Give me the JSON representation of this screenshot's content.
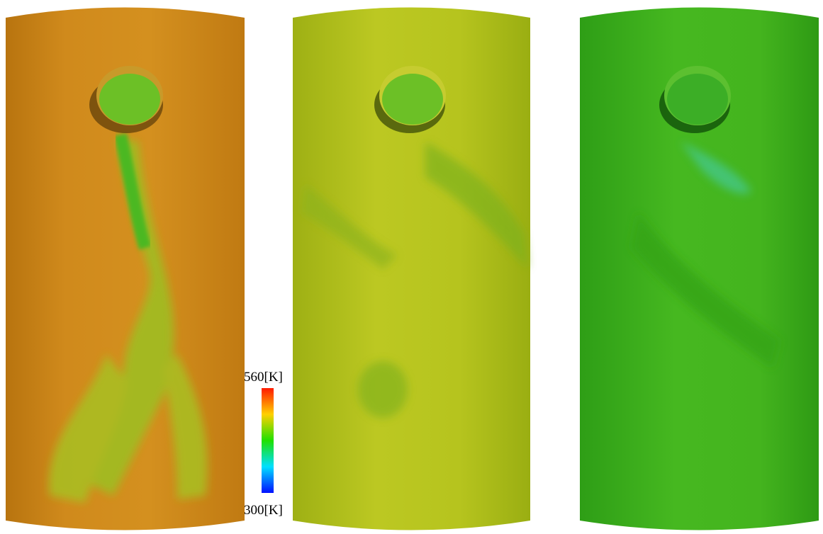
{
  "colorbar": {
    "max_label": "560[K]",
    "min_label": "300[K]"
  }
}
